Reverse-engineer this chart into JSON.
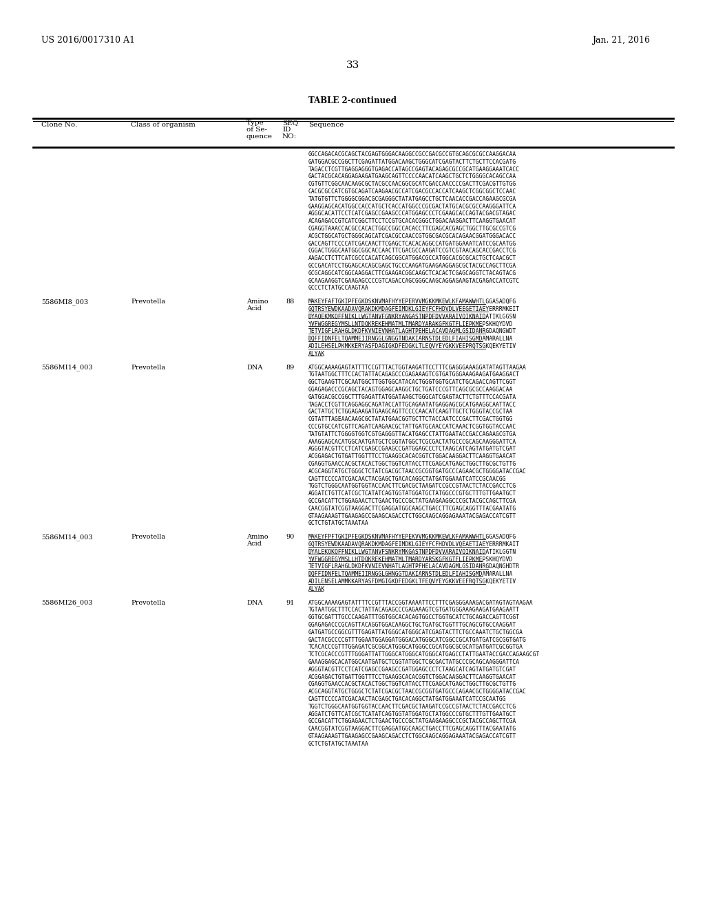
{
  "page_number": "33",
  "patent_number": "US 2016/0017310 A1",
  "patent_date": "Jan. 21, 2016",
  "table_title": "TABLE 2-continued",
  "background_color": "#ffffff",
  "text_color": "#000000",
  "first_seq_lines": [
    "GGCCAGACACGCAGCTACGAGTGGGACAAGGCCGCCGACGCCGTGCAGCGCGCCAAGGACAA",
    "GATGGACGCCGGCTTCGAGATTATGGACAAGCTGGGCATCGAGTACTTCTGCTTCCACGATG",
    "TAGACCTCGTTGAGGAGGGTGAGACCATAGCCGAGTACAGAGCGCCGCATGAAGGAAATCACC",
    "GACTACGCACAGGAGAAGATGAAGCAGTTCCCCAACATCAAGCTGCTCTGGGGCACAGCCAA",
    "CGTGTTCGGCAACAAGCGCTACGCCAACGGCGCATCGACCAACCCCGACTTCGACGTTGTGG",
    "CACGCGCCATCGTGCAGATCAAGAACGCCATCGACGCCACCATCAAGCTCGGCGGCTCCAAC",
    "TATGTGTTCTGGGGCGGACGCGAGGGCTATATGAGCCTGCTCAACACCGACCAGAAGCGCGA",
    "GAAGGAGCACATGGCCACCATGCTCACCATGGCCCGCGACTATGCACGCGCCAAGGGATTCA",
    "AGGGCACATTCCTCATCGAGCCGAAGCCCATGGAGCCCTCGAAGCACCAGTACGACGTAGAC",
    "ACAGAGACCGTCATCGGCTTCCTCCGTGCACACGGGCTGGACAAGGACTTCAAGGTGAACAT",
    "CGAGGTAAACCACGCCACACTGGCCGGCCACACCTTCGAGCACGAGCTGGCTTGCGCCGTCG",
    "ACGCTGGCATGCTGGGCAGCATCGACGCCAACCGTGGCGACGCACAGAACGGATGGGACACC",
    "GACCAGTTCCCCATCGACAACTTCGAGCTCACACAGGCCATGATGGAAATCATCCGCAATGG",
    "CGGACTGGGCAATGGCGGCACCAACTTCGACGCCAAGATCCGTCGTAACAGCACCGACCTCG",
    "AAGACCTCTTCATCGCCCACATCAGCGGCATGGACGCCATGGCACGCGCACTGCTCAACGCT",
    "GCCGACATCCTGGAGCACAGCGAGCTGCCCAAGATGAAGAAGGAGCGCTACGCCAGCTTCGA",
    "GCGCAGGCATCGGCAAGGACTTCGAAGACGGCAAGCTCACACTCGAGCAGGTCTACAGTACG",
    "GCAAGAAGGTCGAAGAGCCCCGTCAGACCAGCGGGCAAGCAGGAGAAGTACGAGACCATCGTC",
    "GCCCTCTATGCCAAGTAA"
  ],
  "entry_88_clone": "5586MI8_003",
  "entry_88_organism": "Prevotella",
  "entry_88_type1": "Amino",
  "entry_88_type2": "Acid",
  "entry_88_seqid": "88",
  "entry_88_lines": [
    "MAKEYFAFTGKIPFEGKDSKNVMAFHYYEPERVVMGKKMKEWLKFAMAWWHTLGGASADQFG",
    "GQTRSYEWDKAADAVQRAKDKMDAGFEIMDKLGIEYFCFHDVDLVEEGETIAEYERRRMKEIT",
    "DYAQEKMKQFFNIKLLWGTANVFGNKRYANGASTNPDFDVVARAIVQIKNAIDATIKLGGSN",
    "YVFWGGREGYMSLLNTDQKREKEHMATMLTMARDYARAKGFKGTFLIEPKMEPSKHQYDVD",
    "TETVIGFLRAHGLDKDFKVNIEVNHATLAGHTPEHELACAVDAGMLGSIDANRGDAQNGWDT",
    "DQFFIDNFELTQAMMEIIRNGGLGNGGTNDAKIARNSTDLEDLFIAHISGMDAMARALLNA",
    "ADILEHSELPKMKKERYASFDAGIGKDFEDGKLTLEQVYEYGKKVEEPRQTSGKQEKYETIV",
    "ALYAK"
  ],
  "entry_89_clone": "5586MI14_003",
  "entry_89_organism": "Prevotella",
  "entry_89_type": "DNA",
  "entry_89_seqid": "89",
  "entry_89_lines": [
    "ATGGCAAAAGAGTATTTTCCGTTTACTGGTAAGATTCCTTTCGAGGGAAAGGATATAGTTAAGAA",
    "TGTAATGGCTTTCCACTATTACAGAGCCCGAGAAAGTCGTGATGGGAAAGAAGATGAAGGACT",
    "GGCTGAAGTTCGCAATGGCTTGGTGGCATACACTGGGTGGTGCATCTGCAGACCAGTTCGGT",
    "GGAGAGACCCGCAGCTACAGTGGAGCAAGGCTGCTGATCCCGTTCAGCGCGCCAAGGACAA",
    "GATGGACGCCGGCTTTGAGATTATGGATAAGCTGGGCATCGAGTACTTCTGTTTCCACGATA",
    "TAGACCTCGTTCAGGAGGCAGATACCATTGCAGAATATGAGGAGCGCATGAAGGCAATTACC",
    "GACTATGCTCTGGAGAAGATGAAGCAGTTCCCCAACATCAAGTTGCTCTGGGTACCGCTAA",
    "CGTATTTAGEAACAAGCGCTATATGAACGGTGCTTCTACCAATCCCGACTTCGACTGGTGG",
    "CCCGTGCCATCGTTCAGATCAAGAACGCTATTGATGCAACCATCAAACTCGGTGGTACCAAC",
    "TATGTATTCTGGGGTGGTCGTGAGGGTTACATGAGCCTATTGAATACCGACCAGAAGCGTGA",
    "AAAGGAGCACATGGCAATGATGCTCGGTATGGCTCGCGACTATGCCCGCAGCAAGGGATTCA",
    "AGGGTACGTTCCTCATCGAGCCGAAGCCGATGGAGCCCTCTAAGCATCAGTATGATGTCGAT",
    "ACGGAGACTGTGATTGGTTTCCTGAAGGCACACGGTCTGGACAAGGACTTCAAGGTGAACAT",
    "CGAGGTGAACCACGCTACACTGGCTGGTCATACCTTCGAGCATGAGCTGGCTTGCGCTGTTG",
    "ACGCAGGTATGCTGGGCTCTATCGACGCTAACCGCGGTGATGCCCAGAACGCTGGGGATACCGAC",
    "CAGTTCCCCATCGACAACTACGAGCTGACACAGGCTATGATGGAAATCATCCGCAACGG",
    "TGGTCTGGGCAATGGTGGTACCAACTTCGACGCTAAGATCCGCCGTAACTCTACCGACCTCG",
    "AGGATCTGTTCATCGCTCATATCAGTGGTATGGATGCTATGGCCCGTGCTTTGTTGAATGCT",
    "GCCGACATTCTGGAGAACTCTGAACTGCCCGCTATGAAGAAGGCCCGCTACGCCAGCTTCGA",
    "CAACGGTATCGGTAAGGACTTCGAGGATGGCAAGCTGACCTTCGAGCAGGTTTACGAATATG",
    "GTAAGAAAGTTGAAGAGCCGAAGCAGACCTCTGGCAAGCAGGAGAAATACGAGACCATCGTT",
    "GCTCTGTATGCTAAATAA"
  ],
  "entry_90_clone": "5586MI14_003",
  "entry_90_organism": "Prevotella",
  "entry_90_type1": "Amino",
  "entry_90_type2": "Acid",
  "entry_90_seqid": "90",
  "entry_90_lines": [
    "MAKEYFPFTGKIPFEGKDSKNVMAFHYYEPEKVVMGKKMKEWLKFAMAWWHTLGGASADQFG",
    "GQTRSYEWDKAADAVQRAKDKMDAGFEIMDKLGIEYFCFHDVDLVQEAETIAEYERRRMKAIT",
    "DYALEKQKQFFNIKLLWGTANVFSNKRYMKGASTNPDFDVVARAIVQIKNAIDATIKLGGTN",
    "YVFWGGREGYMSLLHTDQKREKEHMATMLTMARDYARSKGFKGTFLIEPKMEPSKHQYDVD",
    "TETVIGFLRAHGLDKDFKVNIEVNHATLAGHTPFHELACAVDAGMLGSIDANRGDAQNGHDTR",
    "DQFFIDNFELTQAMMEIIRNGGLGHNGGTDAKIARNSTDLEDLFIAHISGMDAMARALLNA",
    "ADILENSELAMMKKARYASFDMGIGKDFEDGKLTFEQVYEYGKKVEEFRQTSGKQEKYETIV",
    "ALYAK"
  ],
  "entry_91_clone": "5586MI26_003",
  "entry_91_organism": "Prevotella",
  "entry_91_type": "DNA",
  "entry_91_seqid": "91",
  "entry_91_lines": [
    "ATGGCAAAAGAGTATTTTCCGTTTACCGGTAAAATTCCTTTCGAGGGAAAGACGATAGTAGTAAGAA",
    "TGTAATGGCTTTCCACTATTACAGAGCCCGAGAAAGTCGTGATGGGAAAGAAGATGAAGAATT",
    "GGTGCGATTTGCCCAAGATTTGGTGGCACACAGTGGCCTGGTGCATCTGCAGACCAGTTCGGT",
    "GGAGAGACCCGCAGTTACAGGTGGACAAGGCTGCTGATGCTGGTTTGCAGCGTGCCAAGGAT",
    "GATGATGCCGGCGTTTGAGATTATGGGCATGGGCATCGAGTACTTCTGCCAAATCTGCTGGCGA",
    "GACTACGCCCCGTTTGGAATGGAGGATGGGACATGGGCATCGGCCGCATGATGATCGCGGTGATG",
    "TCACACCCGTTTGGAGATCGCGGCATGGGCATGGGCCGCATGGCGCGCATGATGATCGCGGTGA",
    "TCTCGCACCCGTTTGGGATTATTGGGCATGGGCATGGGCATGAGCCTATTGAATACCGACCAGAAGCGT",
    "GAAAGGAGCACATGGCAATGATGCTCGGTATGGCTCGCGACTATGCCCGCAGCAAGGGATTCA",
    "AGGGTACGTTCCTCATCGAGCCGAAGCCGATGGAGCCCTCTAAGCATCAGTATGATGTCGAT",
    "ACGGAGACTGTGATTGGTTTCCTGAAGGCACACGGTCTGGACAAGGACTTCAAGGTGAACAT",
    "CGAGGTGAACCACGCTACACTGGCTGGTCATACCTTCGAGCATGAGCTGGCTTGCGCTGTTG",
    "ACGCAGGTATGCTGGGCTCTATCGACGCTAACCGCGGTGATGCCCAGAACGCTGGGGATACCGAC",
    "CAGTTCCCCATCGACAACTACGAGCTGACACAGGCTATGATGGAAATCATCCGCAATGG",
    "TGGTCTGGGCAATGGTGGTACCAACTTCGACGCTAAGATCCGCCGTAACTCTACCGACCTCG",
    "AGGATCTGTTCATCGCTCATATCAGTGGTATGGATGCTATGGCCCGTGCTTTGTTGAATGCT",
    "GCCGACATTCTGGAGAACTCTGAACTGCCCGCTATGAAGAAGGCCCGCTACGCCAGCTTCGA",
    "CAACGGTATCGGTAAGGACTTCGAGGATGGCAAGCTGACCTTCGAGCAGGTTTACGAATATG",
    "GTAAGAAAGTTGAAGAGCCGAAGCAGACCTCTGGCAAGCAGGAGAAATACGAGACCATCGTT",
    "GCTCTGTATGCTAAATAA"
  ]
}
